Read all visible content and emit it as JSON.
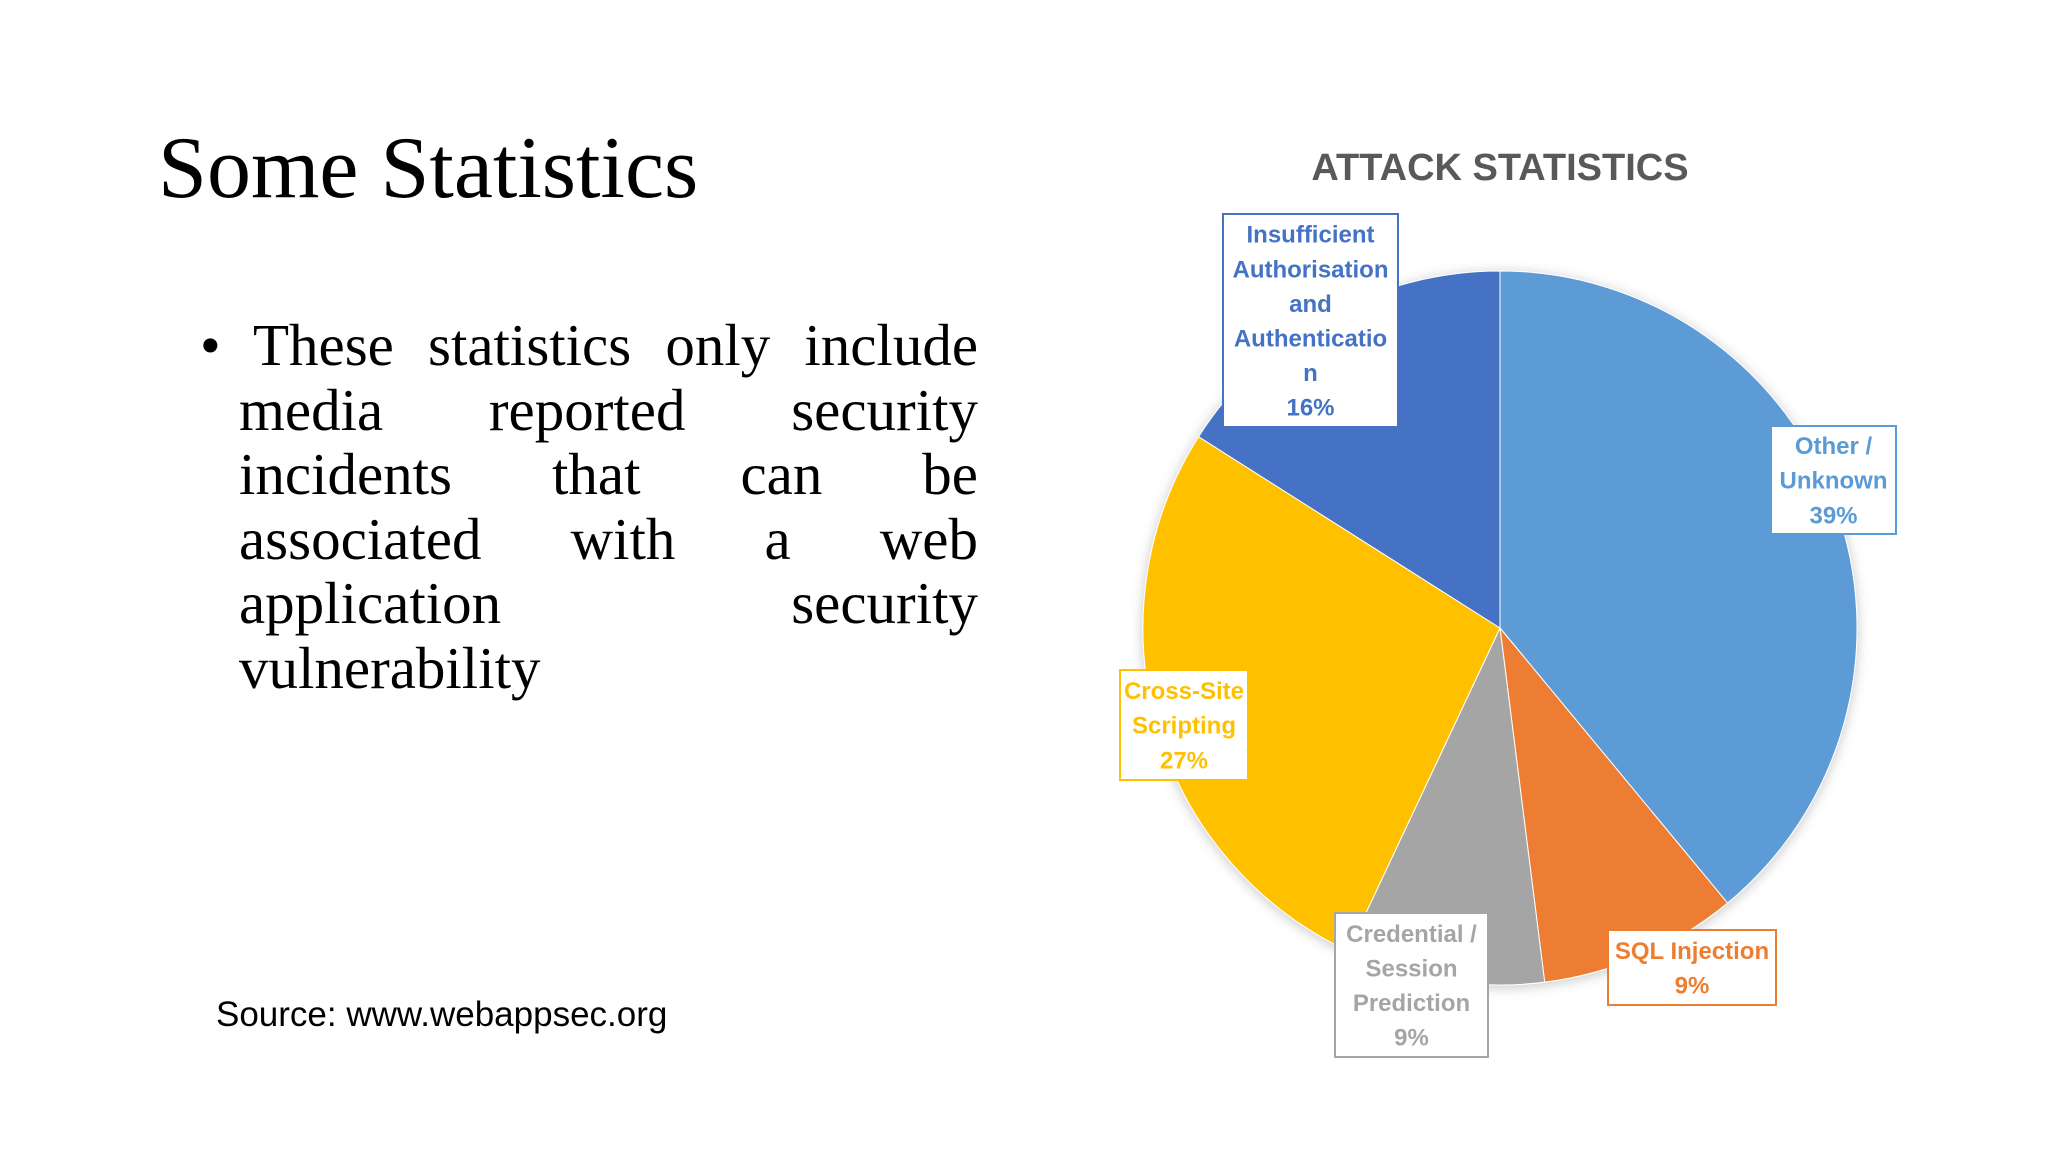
{
  "slide": {
    "title": "Some Statistics",
    "bullet": "These statistics only include media reported security incidents that can be associated with a web application security vulnerability",
    "source": "Source: www.webappsec.org"
  },
  "chart_data": {
    "type": "pie",
    "title": "ATTACK STATISTICS",
    "start": "12 o'clock, clockwise",
    "slices": [
      {
        "name": "Other / Unknown",
        "value": 39,
        "label": "39%",
        "color": "#5B9BD5",
        "label_lines": [
          "Other /",
          "Unknown",
          "39%"
        ]
      },
      {
        "name": "SQL Injection",
        "value": 9,
        "label": "9%",
        "color": "#ED7D31",
        "label_lines": [
          "SQL Injection",
          "9%"
        ]
      },
      {
        "name": "Credential / Session Prediction",
        "value": 9,
        "label": "9%",
        "color": "#A5A5A5",
        "label_lines": [
          "Credential /",
          "Session",
          "Prediction",
          "9%"
        ]
      },
      {
        "name": "Cross-Site Scripting",
        "value": 27,
        "label": "27%",
        "color": "#FFC000",
        "label_lines": [
          "Cross-Site",
          "Scripting",
          "27%"
        ]
      },
      {
        "name": "Insufficient Authorisation and Authentication",
        "value": 16,
        "label": "16%",
        "color": "#4472C4",
        "label_lines": [
          "Insufficient",
          "Authorisation",
          "and",
          "Authenticatio",
          "n",
          "16%"
        ]
      }
    ]
  }
}
